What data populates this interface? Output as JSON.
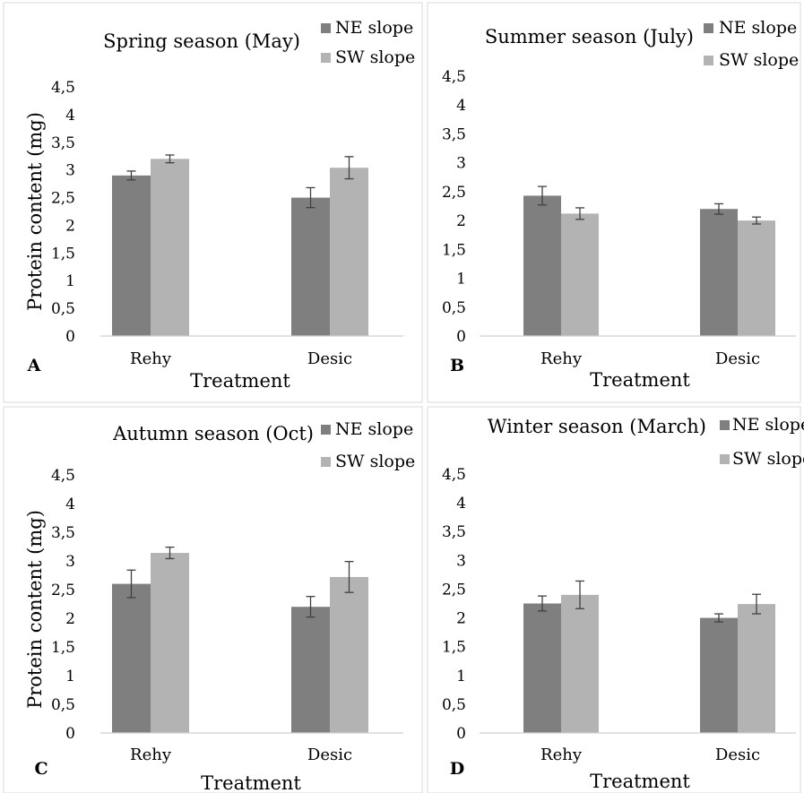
{
  "colors": {
    "ne": "#7f7f7f",
    "sw": "#b3b3b3",
    "frame": "#d9d9d9",
    "axis": "#d0d0d0",
    "error": "#404040"
  },
  "chart_data": [
    {
      "type": "bar",
      "panel": "A",
      "title": "Spring season (May)",
      "xlabel": "Treatment",
      "ylabel": "Protein content (mg)",
      "categories": [
        "Rehy",
        "Desic"
      ],
      "yticks": [
        "0",
        "0,5",
        "1",
        "1,5",
        "2",
        "2,5",
        "3",
        "3,5",
        "4",
        "4,5"
      ],
      "ylim": [
        0,
        4.5
      ],
      "legend_position": "top-right",
      "series": [
        {
          "name": "NE slope",
          "values": [
            2.9,
            2.5
          ],
          "errors": [
            0.08,
            0.18
          ]
        },
        {
          "name": "SW slope",
          "values": [
            3.2,
            3.04
          ],
          "errors": [
            0.07,
            0.2
          ]
        }
      ]
    },
    {
      "type": "bar",
      "panel": "B",
      "title": "Summer season (July)",
      "xlabel": "Treatment",
      "ylabel": "",
      "categories": [
        "Rehy",
        "Desic"
      ],
      "yticks": [
        "0",
        "0,5",
        "1",
        "1,5",
        "2",
        "2,5",
        "3",
        "3,5",
        "4",
        "4,5"
      ],
      "ylim": [
        0,
        4.5
      ],
      "legend_position": "top-right",
      "series": [
        {
          "name": "NE slope",
          "values": [
            2.43,
            2.2
          ],
          "errors": [
            0.16,
            0.09
          ]
        },
        {
          "name": "SW slope",
          "values": [
            2.12,
            2.0
          ],
          "errors": [
            0.1,
            0.06
          ]
        }
      ]
    },
    {
      "type": "bar",
      "panel": "C",
      "title": "Autumn season (Oct)",
      "xlabel": "Treatment",
      "ylabel": "Protein content (mg)",
      "categories": [
        "Rehy",
        "Desic"
      ],
      "yticks": [
        "0",
        "0,5",
        "1",
        "1,5",
        "2",
        "2,5",
        "3",
        "3,5",
        "4",
        "4,5"
      ],
      "ylim": [
        0,
        4.5
      ],
      "legend_position": "top-right",
      "series": [
        {
          "name": "NE slope",
          "values": [
            2.6,
            2.2
          ],
          "errors": [
            0.24,
            0.18
          ]
        },
        {
          "name": "SW slope",
          "values": [
            3.14,
            2.72
          ],
          "errors": [
            0.1,
            0.27
          ]
        }
      ]
    },
    {
      "type": "bar",
      "panel": "D",
      "title": "Winter season (March)",
      "xlabel": "Treatment",
      "ylabel": "",
      "categories": [
        "Rehy",
        "Desic"
      ],
      "yticks": [
        "0",
        "0,5",
        "1",
        "1,5",
        "2",
        "2,5",
        "3",
        "3,5",
        "4",
        "4,5"
      ],
      "ylim": [
        0,
        4.5
      ],
      "legend_position": "top-right",
      "series": [
        {
          "name": "NE slope",
          "values": [
            2.25,
            2.0
          ],
          "errors": [
            0.13,
            0.07
          ]
        },
        {
          "name": "SW slope",
          "values": [
            2.4,
            2.24
          ],
          "errors": [
            0.24,
            0.17
          ]
        }
      ]
    }
  ]
}
